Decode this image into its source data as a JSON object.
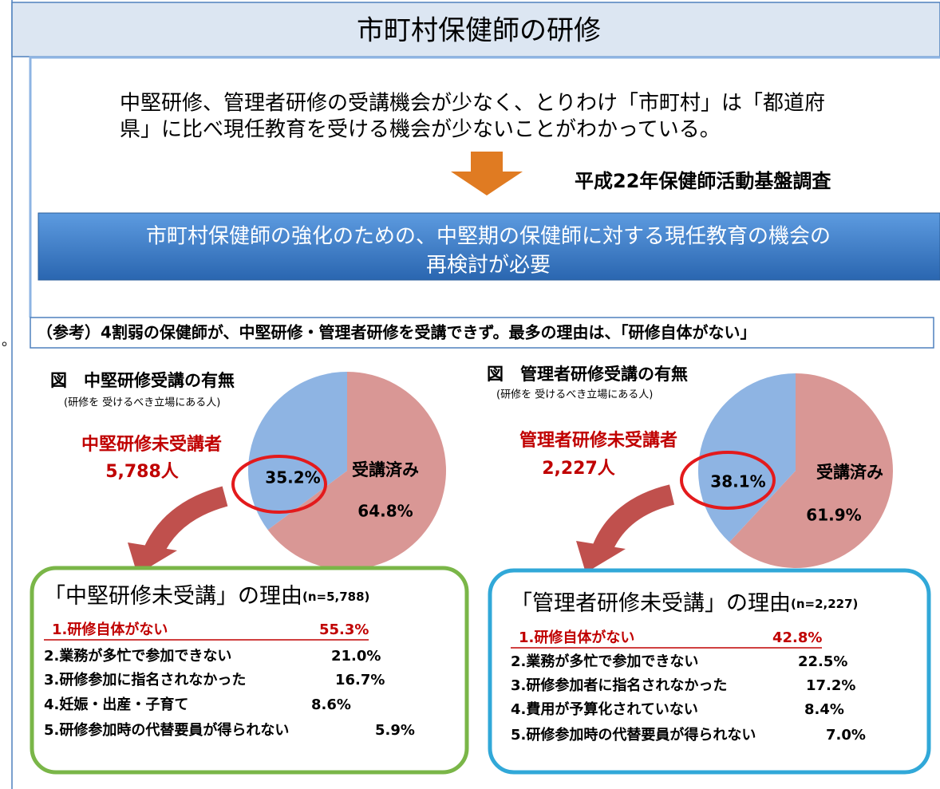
{
  "title": "市町村保健師の研修",
  "summary": [
    "中堅研修、管理者研修の受講機会が少なく、とりわけ「市町村」は「都道府",
    "県」に比べ現任教育を受ける機会が少ないことがわかっている。"
  ],
  "source": "平成22年保健師活動基盤調査",
  "conclusion": [
    "市町村保健師の強化のための、中堅期の保健師に対する現任教育の機会の",
    "再検討が必要"
  ],
  "reference": "（参考）4割弱の保健師が、中堅研修・管理者研修を受講できず。最多の理由は、「研修自体がない」",
  "margin_note": "。",
  "chart_data": [
    {
      "type": "pie",
      "title": "図　中堅研修受講の有無",
      "subtitle": "(研修を 受けるべき立場にある人)",
      "categories": [
        "受講済み",
        null
      ],
      "values": [
        64.8,
        35.2
      ],
      "value_labels": [
        "64.8%",
        "35.2%"
      ],
      "colors": [
        "#d99795",
        "#8eb4e3"
      ],
      "annotations": [
        "中堅研修未受講者",
        "5,788人"
      ]
    },
    {
      "type": "pie",
      "title": "図　管理者研修受講の有無",
      "subtitle": "(研修を 受けるべき立場にある人)",
      "categories": [
        "受講済み",
        null
      ],
      "values": [
        61.9,
        38.1
      ],
      "value_labels": [
        "61.9%",
        "38.1%"
      ],
      "colors": [
        "#d99795",
        "#8eb4e3"
      ],
      "annotations": [
        "管理者研修未受講者",
        "2,227人"
      ]
    }
  ],
  "reasons": [
    {
      "title": "「中堅研修未受講」の理由",
      "n": "(n=5,788)",
      "items": [
        {
          "label": "1.研修自体がない",
          "value": "55.3%"
        },
        {
          "label": "2.業務が多忙で参加できない",
          "value": "21.0%"
        },
        {
          "label": "3.研修参加に指名されなかった",
          "value": "16.7%"
        },
        {
          "label": "4.妊娠・出産・子育て",
          "value": "8.6%"
        },
        {
          "label": "5.研修参加時の代替要員が得られない",
          "value": "5.9%"
        }
      ]
    },
    {
      "title": "「管理者研修未受講」の理由",
      "n": "(n=2,227)",
      "items": [
        {
          "label": "1.研修自体がない",
          "value": "42.8%"
        },
        {
          "label": "2.業務が多忙で参加できない",
          "value": "22.5%"
        },
        {
          "label": "3.研修参加者に指名されなかった",
          "value": "17.2%"
        },
        {
          "label": "4.費用が予算化されていない",
          "value": "8.4%"
        },
        {
          "label": "5.研修参加時の代替要員が得られない",
          "value": "7.0%"
        }
      ]
    }
  ]
}
